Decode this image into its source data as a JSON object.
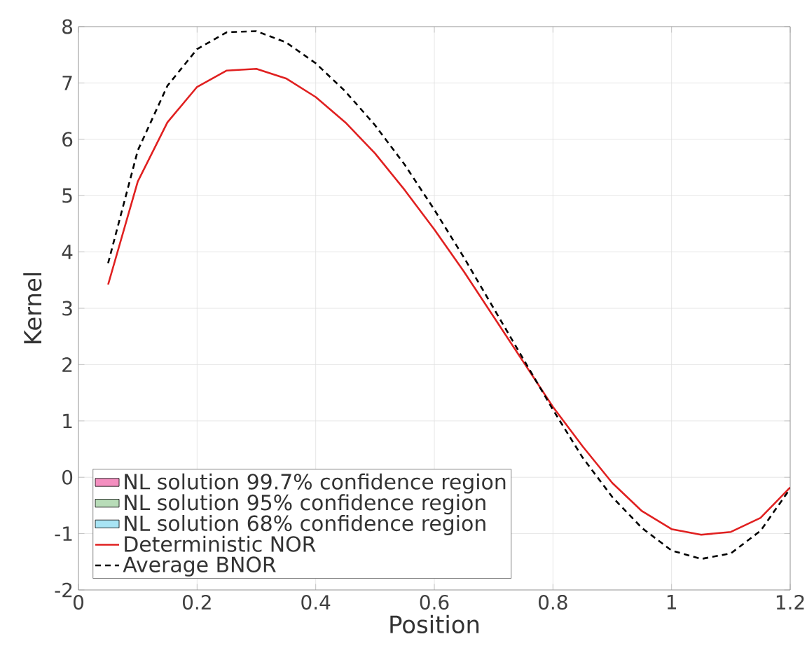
{
  "chart_data": {
    "type": "line",
    "xlabel": "Position",
    "ylabel": "Kernel",
    "x": [
      0.05,
      0.1,
      0.15,
      0.2,
      0.25,
      0.3,
      0.35,
      0.4,
      0.45,
      0.5,
      0.55,
      0.6,
      0.65,
      0.7,
      0.75,
      0.8,
      0.85,
      0.9,
      0.95,
      1.0,
      1.05,
      1.1,
      1.15,
      1.2
    ],
    "series": [
      {
        "name": "NL solution 99.7% confidence region",
        "type": "area",
        "color": "#f48fc0",
        "values": [
          null,
          null,
          null,
          null,
          null,
          null,
          null,
          null,
          null,
          null,
          null,
          null,
          null,
          null,
          null,
          null,
          null,
          null,
          null,
          null,
          null,
          null,
          null,
          null
        ]
      },
      {
        "name": "NL solution 95% confidence region",
        "type": "area",
        "color": "#b8dcb8",
        "values": [
          null,
          null,
          null,
          null,
          null,
          null,
          null,
          null,
          null,
          null,
          null,
          null,
          null,
          null,
          null,
          null,
          null,
          null,
          null,
          null,
          null,
          null,
          null,
          null
        ]
      },
      {
        "name": "NL solution 68% confidence region",
        "type": "area",
        "color": "#a8e4f4",
        "values": [
          null,
          null,
          null,
          null,
          null,
          null,
          null,
          null,
          null,
          null,
          null,
          null,
          null,
          null,
          null,
          null,
          null,
          null,
          null,
          null,
          null,
          null,
          null,
          null
        ]
      },
      {
        "name": "Deterministic NOR",
        "color": "#e02020",
        "line_style": "solid",
        "values": [
          3.42,
          5.25,
          6.3,
          6.93,
          7.22,
          7.25,
          7.08,
          6.75,
          6.3,
          5.75,
          5.1,
          4.4,
          3.65,
          2.85,
          2.05,
          1.25,
          0.55,
          -0.1,
          -0.6,
          -0.92,
          -1.02,
          -0.97,
          -0.72,
          -0.18
        ]
      },
      {
        "name": "Average BNOR",
        "color": "#000000",
        "line_style": "dashed",
        "values": [
          3.8,
          5.8,
          6.95,
          7.6,
          7.9,
          7.92,
          7.72,
          7.35,
          6.85,
          6.25,
          5.55,
          4.75,
          3.9,
          3.0,
          2.1,
          1.2,
          0.35,
          -0.35,
          -0.9,
          -1.3,
          -1.45,
          -1.35,
          -0.95,
          -0.2
        ]
      }
    ],
    "xlim": [
      0,
      1.2
    ],
    "xticks": [
      0,
      0.2,
      0.4,
      0.6,
      0.8,
      1,
      1.2
    ],
    "ylim": [
      -2,
      8
    ],
    "yticks": [
      -2,
      -1,
      0,
      1,
      2,
      3,
      4,
      5,
      6,
      7,
      8
    ],
    "grid": true,
    "legend": "bottom left"
  }
}
